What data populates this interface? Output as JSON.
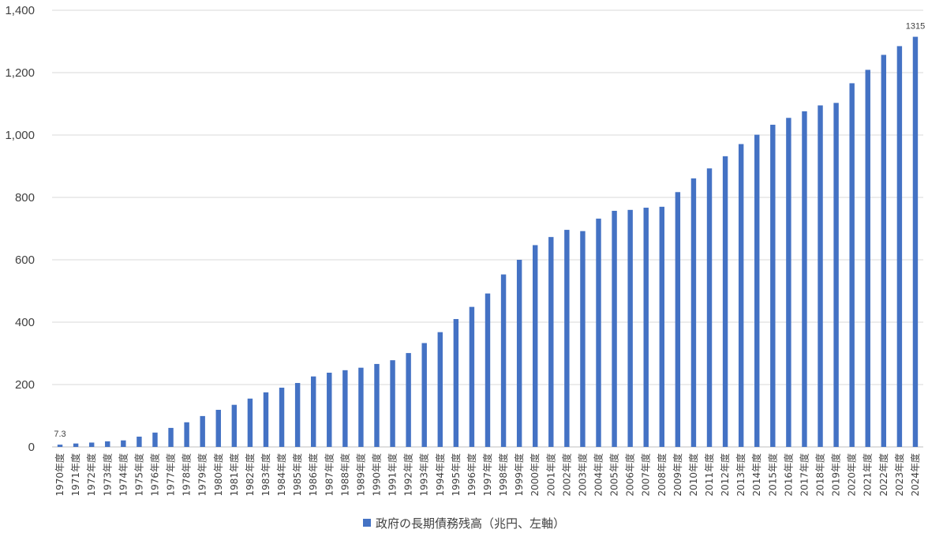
{
  "chart_data": {
    "type": "bar",
    "title": "",
    "xlabel": "",
    "ylabel": "",
    "ylim": [
      0,
      1400
    ],
    "yticks": [
      0,
      200,
      400,
      600,
      800,
      1000,
      1200,
      1400
    ],
    "ytick_labels": [
      "0",
      "200",
      "400",
      "600",
      "800",
      "1,000",
      "1,200",
      "1,400"
    ],
    "grid": true,
    "legend_position": "bottom",
    "bar_color": "#4472C4",
    "categories": [
      "1970年度",
      "1971年度",
      "1972年度",
      "1973年度",
      "1974年度",
      "1975年度",
      "1976年度",
      "1977年度",
      "1978年度",
      "1979年度",
      "1980年度",
      "1981年度",
      "1982年度",
      "1983年度",
      "1984年度",
      "1985年度",
      "1986年度",
      "1987年度",
      "1988年度",
      "1989年度",
      "1990年度",
      "1991年度",
      "1992年度",
      "1993年度",
      "1994年度",
      "1995年度",
      "1996年度",
      "1997年度",
      "1998年度",
      "1999年度",
      "2000年度",
      "2001年度",
      "2002年度",
      "2003年度",
      "2004年度",
      "2005年度",
      "2006年度",
      "2007年度",
      "2008年度",
      "2009年度",
      "2010年度",
      "2011年度",
      "2012年度",
      "2013年度",
      "2014年度",
      "2015年度",
      "2016年度",
      "2017年度",
      "2018年度",
      "2019年度",
      "2020年度",
      "2021年度",
      "2022年度",
      "2023年度",
      "2024年度"
    ],
    "series": [
      {
        "name": "政府の長期債務残高（兆円、左軸）",
        "values": [
          7.3,
          11,
          14,
          18,
          21,
          33,
          46,
          61,
          79,
          99,
          119,
          135,
          155,
          175,
          190,
          205,
          226,
          238,
          246,
          254,
          266,
          278,
          301,
          333,
          368,
          410,
          449,
          492,
          553,
          600,
          647,
          673,
          696,
          692,
          732,
          757,
          760,
          767,
          770,
          817,
          861,
          893,
          932,
          971,
          1001,
          1033,
          1055,
          1076,
          1095,
          1103,
          1166,
          1209,
          1257,
          1285,
          1315
        ]
      }
    ],
    "data_labels": [
      {
        "index": 0,
        "text": "7.3"
      },
      {
        "index": 54,
        "text": "1315"
      }
    ]
  }
}
